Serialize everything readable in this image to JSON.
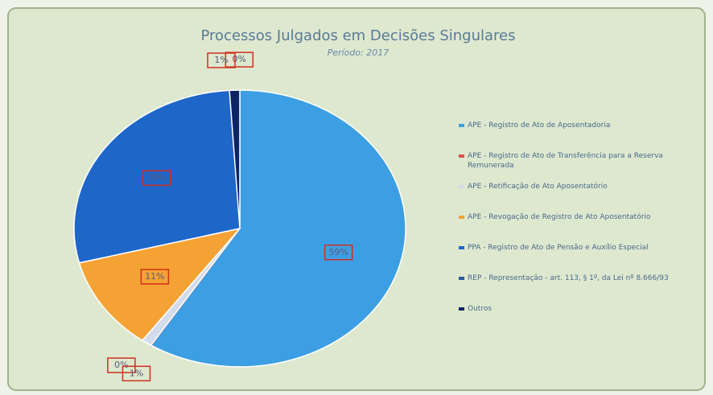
{
  "chart_data": {
    "type": "pie",
    "title": "Processos Julgados em Decisões Singulares",
    "subtitle": "Período: 2017",
    "categories": [
      "APE - Registro de Ato de Aposentadoria",
      "APE - Registro de Ato de Transferência para a Reserva Remunerada",
      "APE - Retificação de Ato Aposentatório",
      "APE - Revogação de Registro de Ato Aposentatório",
      "PPA - Registro de Ato de Pensão e Auxílio Especial",
      "REP - Representação - art. 113, § 1º, da Lei nº 8.666/93",
      "Outros"
    ],
    "values": [
      59,
      0,
      1,
      11,
      28,
      0,
      1
    ],
    "value_labels": [
      "59%",
      "0%",
      "1%",
      "11%",
      "28%",
      "0%",
      "1%"
    ],
    "colors": [
      "#3d9fe3",
      "#d9534f",
      "#d4dcec",
      "#f5a234",
      "#1f66c9",
      "#2a5a9a",
      "#0c2466"
    ],
    "legend": "right"
  }
}
